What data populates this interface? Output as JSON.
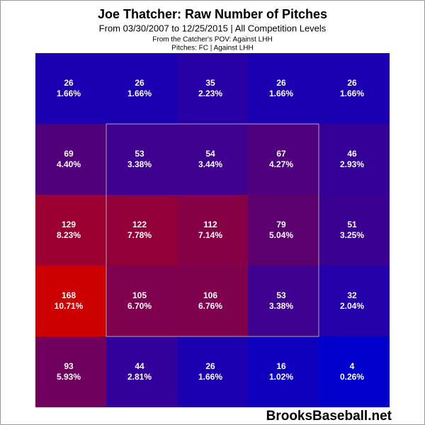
{
  "chart_data": {
    "type": "heatmap",
    "title": "Joe Thatcher: Raw Number of Pitches",
    "subtitle": "From 03/30/2007 to 12/25/2015 | All Competition Levels",
    "note_1": "From the Catcher's POV:  Against LHH",
    "note_2": "Pitches:  FC  |  Against LHH",
    "source": "BrooksBaseball.net",
    "color_low": "#0000cc",
    "color_high": "#cc0000",
    "values": [
      [
        26,
        26,
        35,
        26,
        26
      ],
      [
        69,
        53,
        54,
        67,
        46
      ],
      [
        129,
        122,
        112,
        79,
        51
      ],
      [
        168,
        105,
        106,
        53,
        32
      ],
      [
        93,
        44,
        26,
        16,
        4
      ]
    ],
    "percents": [
      [
        1.66,
        1.66,
        2.23,
        1.66,
        1.66
      ],
      [
        4.4,
        3.38,
        3.44,
        4.27,
        2.93
      ],
      [
        8.23,
        7.78,
        7.14,
        5.04,
        3.25
      ],
      [
        10.71,
        6.7,
        6.76,
        3.38,
        2.04
      ],
      [
        5.93,
        2.81,
        1.66,
        1.02,
        0.26
      ]
    ],
    "percent_labels": [
      [
        "1.66%",
        "1.66%",
        "2.23%",
        "1.66%",
        "1.66%"
      ],
      [
        "4.40%",
        "3.38%",
        "3.44%",
        "4.27%",
        "2.93%"
      ],
      [
        "8.23%",
        "7.78%",
        "7.14%",
        "5.04%",
        "3.25%"
      ],
      [
        "10.71%",
        "6.70%",
        "6.76%",
        "3.38%",
        "2.04%"
      ],
      [
        "5.93%",
        "2.81%",
        "1.66%",
        "1.02%",
        "0.26%"
      ]
    ]
  }
}
